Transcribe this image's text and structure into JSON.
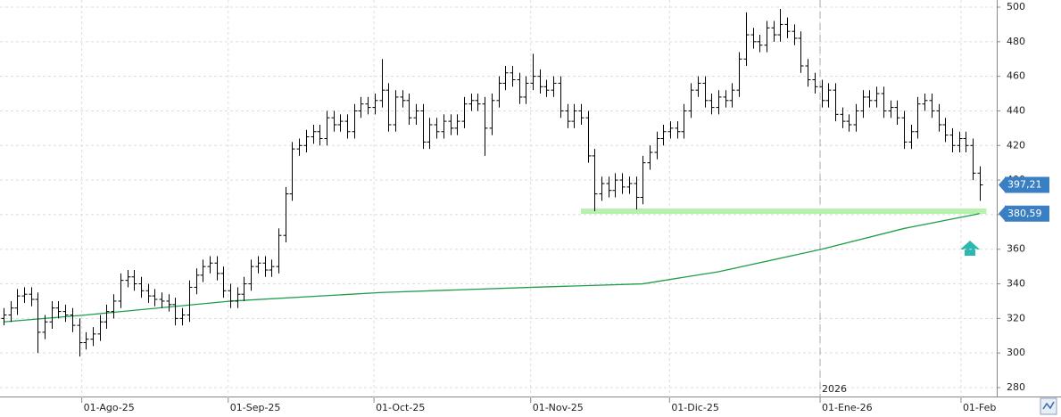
{
  "chart_data": {
    "type": "ohlc",
    "color": "#000000",
    "open": [
      320,
      322,
      326,
      333,
      334,
      331,
      312,
      318,
      326,
      324,
      322,
      316,
      306,
      308,
      311,
      318,
      324,
      330,
      342,
      344,
      340,
      336,
      333,
      331,
      330,
      328,
      320,
      322,
      338,
      345,
      350,
      352,
      346,
      336,
      330,
      334,
      340,
      350,
      352,
      348,
      350,
      368,
      392,
      418,
      420,
      425,
      428,
      424,
      436,
      432,
      434,
      428,
      440,
      444,
      442,
      446,
      452,
      432,
      448,
      446,
      436,
      440,
      422,
      432,
      428,
      434,
      430,
      434,
      444,
      446,
      444,
      430,
      446,
      456,
      462,
      458,
      448,
      456,
      460,
      454,
      452,
      456,
      440,
      434,
      440,
      436,
      414,
      392,
      398,
      394,
      400,
      396,
      398,
      390,
      410,
      416,
      424,
      428,
      430,
      428,
      440,
      452,
      456,
      446,
      442,
      448,
      446,
      452,
      470,
      484,
      480,
      478,
      488,
      484,
      490,
      486,
      482,
      466,
      458,
      454,
      446,
      452,
      438,
      434,
      432,
      440,
      448,
      446,
      450,
      440,
      442,
      436,
      422,
      428,
      444,
      446,
      440,
      432,
      426,
      420,
      424,
      420,
      404
    ],
    "high": [
      326,
      330,
      337,
      338,
      338,
      335,
      322,
      330,
      330,
      328,
      326,
      320,
      312,
      315,
      322,
      328,
      334,
      346,
      348,
      348,
      344,
      340,
      337,
      335,
      334,
      332,
      326,
      342,
      349,
      354,
      356,
      356,
      350,
      340,
      338,
      344,
      354,
      356,
      356,
      354,
      372,
      396,
      422,
      424,
      429,
      432,
      432,
      440,
      440,
      438,
      438,
      444,
      448,
      448,
      450,
      470,
      456,
      452,
      452,
      450,
      444,
      444,
      436,
      436,
      438,
      438,
      438,
      448,
      450,
      450,
      448,
      450,
      460,
      466,
      466,
      462,
      460,
      473,
      464,
      458,
      460,
      460,
      444,
      444,
      444,
      440,
      418,
      402,
      402,
      404,
      404,
      402,
      402,
      414,
      420,
      428,
      432,
      434,
      434,
      444,
      456,
      460,
      460,
      450,
      452,
      452,
      456,
      474,
      497,
      488,
      484,
      492,
      492,
      499,
      494,
      490,
      486,
      470,
      462,
      458,
      456,
      456,
      442,
      438,
      444,
      452,
      452,
      454,
      454,
      446,
      446,
      440,
      432,
      448,
      450,
      450,
      444,
      436,
      430,
      428,
      428,
      424,
      408
    ],
    "low": [
      316,
      318,
      322,
      329,
      327,
      300,
      308,
      314,
      320,
      318,
      312,
      298,
      302,
      304,
      307,
      314,
      320,
      326,
      338,
      336,
      332,
      329,
      327,
      326,
      324,
      316,
      316,
      318,
      334,
      341,
      346,
      342,
      332,
      326,
      326,
      330,
      336,
      346,
      344,
      344,
      346,
      364,
      388,
      414,
      416,
      421,
      420,
      420,
      428,
      428,
      424,
      424,
      436,
      438,
      438,
      442,
      428,
      428,
      442,
      432,
      432,
      418,
      418,
      424,
      424,
      426,
      426,
      430,
      440,
      440,
      414,
      426,
      442,
      452,
      454,
      444,
      444,
      452,
      450,
      448,
      448,
      436,
      430,
      430,
      432,
      410,
      382,
      388,
      390,
      390,
      392,
      392,
      383,
      386,
      406,
      412,
      420,
      424,
      424,
      424,
      436,
      448,
      442,
      438,
      438,
      442,
      442,
      448,
      466,
      476,
      474,
      474,
      480,
      480,
      482,
      478,
      462,
      454,
      450,
      442,
      442,
      434,
      430,
      428,
      428,
      436,
      442,
      442,
      436,
      436,
      432,
      418,
      418,
      424,
      440,
      436,
      428,
      422,
      416,
      416,
      416,
      400,
      388
    ],
    "close": [
      322,
      326,
      333,
      334,
      331,
      312,
      318,
      326,
      324,
      322,
      316,
      306,
      308,
      311,
      318,
      324,
      330,
      342,
      344,
      340,
      336,
      333,
      331,
      330,
      328,
      320,
      322,
      338,
      345,
      350,
      352,
      346,
      336,
      330,
      334,
      340,
      350,
      352,
      348,
      350,
      368,
      392,
      418,
      420,
      425,
      428,
      424,
      436,
      432,
      434,
      428,
      440,
      444,
      442,
      446,
      452,
      432,
      448,
      446,
      436,
      440,
      422,
      432,
      428,
      434,
      430,
      434,
      444,
      446,
      444,
      430,
      446,
      456,
      462,
      458,
      448,
      456,
      460,
      454,
      452,
      456,
      440,
      434,
      440,
      436,
      414,
      392,
      398,
      394,
      400,
      396,
      398,
      390,
      410,
      416,
      424,
      428,
      430,
      428,
      440,
      452,
      456,
      446,
      442,
      448,
      446,
      452,
      470,
      484,
      480,
      478,
      488,
      484,
      490,
      486,
      482,
      466,
      458,
      454,
      446,
      452,
      438,
      434,
      432,
      440,
      448,
      446,
      450,
      440,
      442,
      436,
      422,
      428,
      444,
      446,
      440,
      432,
      426,
      420,
      424,
      420,
      404,
      397.21
    ],
    "moving_average": {
      "color": "#1e9e4a",
      "x": [
        0,
        12,
        33,
        55,
        77,
        85,
        93,
        104,
        119,
        131,
        142
      ],
      "values": [
        318,
        322,
        330,
        335,
        338,
        339,
        340,
        347,
        360,
        372,
        380.59
      ]
    },
    "support": {
      "color": "#b8f0b0",
      "value": 382,
      "from": 84,
      "to": 143
    },
    "price_labels": {
      "values": [
        397.21,
        380.59
      ],
      "value_labels": [
        "397,21",
        "380,59"
      ],
      "color": "#3a7fc4"
    },
    "xlim": [
      -0.5,
      144.5
    ],
    "xticks": [
      {
        "value": 11.4,
        "label": "01-Ago-25"
      },
      {
        "value": 32.7,
        "label": "01-Sep-25"
      },
      {
        "value": 53.9,
        "label": "01-Oct-25"
      },
      {
        "value": 76.7,
        "label": "01-Nov-25"
      },
      {
        "value": 96.9,
        "label": "01-Dic-25"
      },
      {
        "value": 118.8,
        "label": "01-Ene-26"
      },
      {
        "value": 139.3,
        "label": "01-Feb"
      }
    ],
    "year_marker": {
      "value": 118.8,
      "label": "2026"
    },
    "ylim": [
      280,
      500
    ],
    "yticks": [
      280,
      300,
      320,
      340,
      360,
      380,
      400,
      420,
      440,
      460,
      480,
      500
    ],
    "grid": true
  }
}
